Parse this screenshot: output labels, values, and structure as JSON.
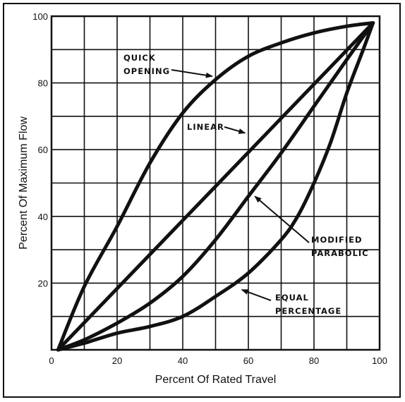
{
  "chart_data": {
    "type": "line",
    "xlabel": "Percent Of Rated Travel",
    "ylabel": "Percent Of Maximum Flow",
    "xlim": [
      0,
      100
    ],
    "ylim": [
      0,
      100
    ],
    "x_ticks": [
      "0",
      "20",
      "40",
      "60",
      "80",
      "100"
    ],
    "y_ticks": [
      "20",
      "40",
      "60",
      "80",
      "100"
    ],
    "grid": true,
    "line_color": "#111111",
    "series": [
      {
        "name": "QUICK OPENING",
        "x": [
          2,
          10,
          20,
          30,
          40,
          50,
          60,
          70,
          80,
          90,
          98
        ],
        "y": [
          0,
          19,
          37,
          56,
          71,
          81,
          88,
          92,
          95,
          97,
          98
        ]
      },
      {
        "name": "LINEAR",
        "x": [
          2,
          98
        ],
        "y": [
          0,
          98
        ]
      },
      {
        "name": "MODIFIED PARABOLIC",
        "x": [
          2,
          10,
          20,
          30,
          40,
          50,
          60,
          70,
          80,
          90,
          98
        ],
        "y": [
          0,
          3,
          8,
          14,
          22,
          33,
          46,
          59,
          73,
          87,
          98
        ]
      },
      {
        "name": "EQUAL PERCENTAGE",
        "x": [
          2,
          10,
          20,
          30,
          40,
          50,
          60,
          70,
          75,
          80,
          85,
          90,
          95,
          98
        ],
        "y": [
          0,
          2,
          5,
          7,
          10,
          16,
          23,
          33,
          40,
          50,
          62,
          77,
          90,
          98
        ]
      }
    ],
    "annotations": [
      {
        "series": 0,
        "lines": [
          "QUICK",
          "OPENING"
        ],
        "arrow_to": [
          49,
          82
        ]
      },
      {
        "series": 1,
        "lines": [
          "LINEAR"
        ],
        "arrow_to": [
          59,
          65
        ]
      },
      {
        "series": 2,
        "lines": [
          "MODIFIED",
          "PARABOLIC"
        ],
        "arrow_to": [
          62,
          46
        ]
      },
      {
        "series": 3,
        "lines": [
          "EQUAL",
          "PERCENTAGE"
        ],
        "arrow_to": [
          58,
          18
        ]
      }
    ]
  }
}
